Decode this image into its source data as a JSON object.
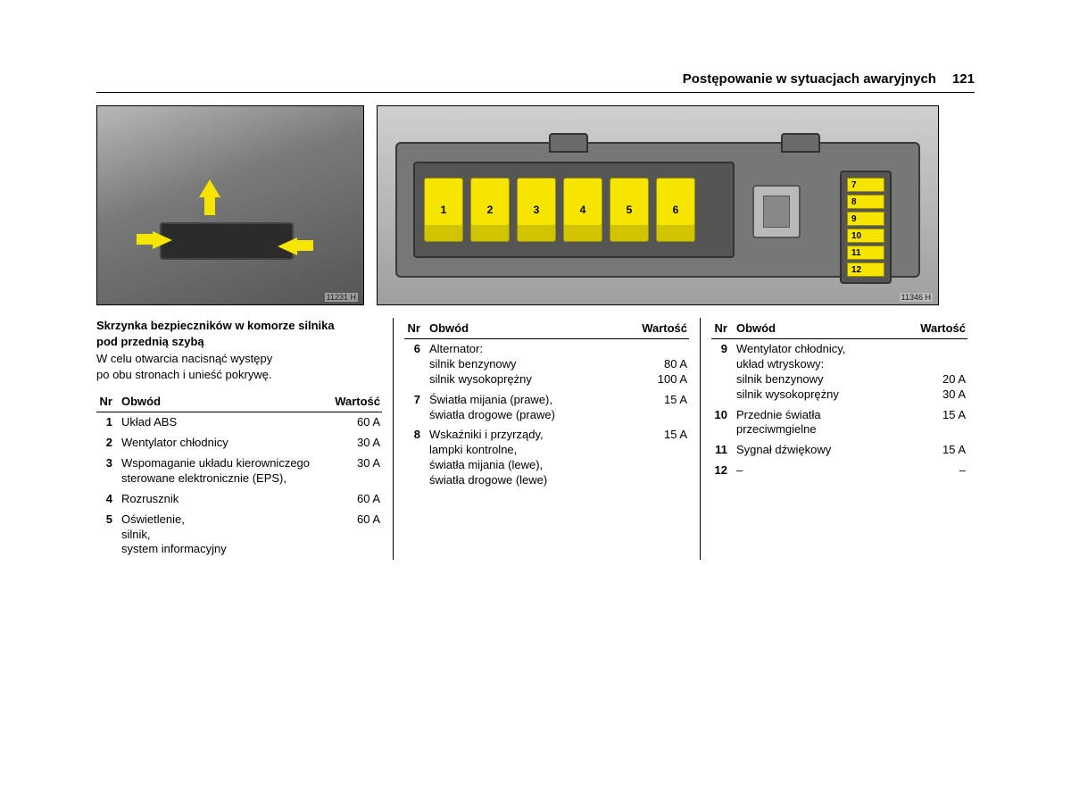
{
  "header": {
    "title": "Postępowanie w sytuacjach awaryjnych",
    "page": "121"
  },
  "figures": {
    "left_caption": "11231 H",
    "right_caption": "11346 H",
    "main_fuses": [
      "1",
      "2",
      "3",
      "4",
      "5",
      "6"
    ],
    "mini_fuses": [
      "7",
      "8",
      "9",
      "10",
      "11",
      "12"
    ]
  },
  "col1": {
    "title_l1": "Skrzynka bezpieczników w komorze silnika",
    "title_l2": "pod przednią szybą",
    "text_l1": "W celu otwarcia nacisnąć występy",
    "text_l2": "po obu stronach i unieść pokrywę.",
    "th_nr": "Nr",
    "th_obw": "Obwód",
    "th_val": "Wartość",
    "rows": [
      {
        "nr": "1",
        "obw": "Układ ABS",
        "val": "60 A"
      },
      {
        "nr": "2",
        "obw": "Wentylator chłodnicy",
        "val": "30 A"
      },
      {
        "nr": "3",
        "obw": "Wspomaganie układu kierowniczego sterowane elektronicznie (EPS),",
        "val": "30 A"
      },
      {
        "nr": "4",
        "obw": "Rozrusznik",
        "val": "60 A"
      },
      {
        "nr": "5",
        "obw": "Oświetlenie,\nsilnik,\nsystem informacyjny",
        "val": "60 A"
      }
    ]
  },
  "col2": {
    "th_nr": "Nr",
    "th_obw": "Obwód",
    "th_val": "Wartość",
    "rows": [
      {
        "nr": "6",
        "obw": "Alternator:\nsilnik benzynowy\nsilnik wysokoprężny",
        "val": "\n80 A\n100 A"
      },
      {
        "nr": "7",
        "obw": "Światła mijania (prawe),\nświatła drogowe (prawe)",
        "val": "15 A"
      },
      {
        "nr": "8",
        "obw": "Wskaźniki i przyrządy,\nlampki kontrolne,\nświatła mijania (lewe),\nświatła drogowe (lewe)",
        "val": "15 A"
      }
    ]
  },
  "col3": {
    "th_nr": "Nr",
    "th_obw": "Obwód",
    "th_val": "Wartość",
    "rows": [
      {
        "nr": "9",
        "obw": "Wentylator chłodnicy,\nukład wtryskowy:\nsilnik benzynowy\nsilnik wysokoprężny",
        "val": "\n\n20 A\n30 A"
      },
      {
        "nr": "10",
        "obw": "Przednie światła\nprzeciwmgielne",
        "val": "15 A"
      },
      {
        "nr": "11",
        "obw": "Sygnał dźwiękowy",
        "val": "15 A"
      },
      {
        "nr": "12",
        "obw": "–",
        "val": "–"
      }
    ]
  }
}
